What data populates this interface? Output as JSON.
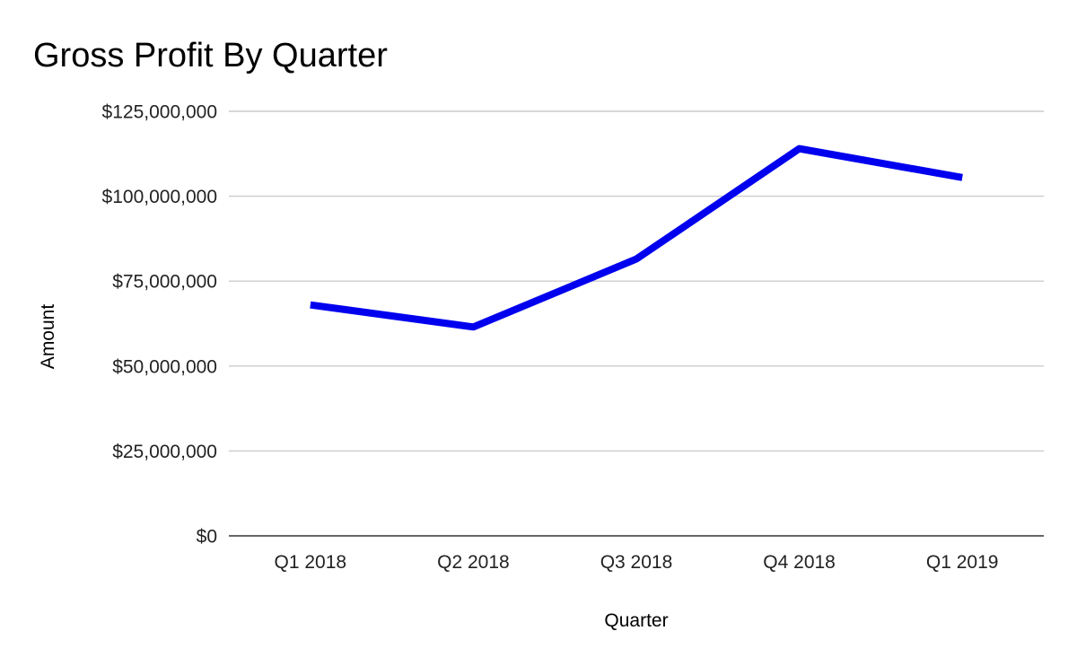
{
  "chart_data": {
    "type": "line",
    "title": "Gross Profit By Quarter",
    "xlabel": "Quarter",
    "ylabel": "Amount",
    "categories": [
      "Q1 2018",
      "Q2 2018",
      "Q3 2018",
      "Q4 2018",
      "Q1 2019"
    ],
    "series": [
      {
        "values": [
          68000000,
          61500000,
          81500000,
          114000000,
          105500000
        ],
        "color": "#0000ee"
      }
    ],
    "ylim": [
      0,
      125000000
    ],
    "yticks": [
      0,
      25000000,
      50000000,
      75000000,
      100000000,
      125000000
    ],
    "ytick_labels": [
      "$0",
      "$25,000,000",
      "$50,000,000",
      "$75,000,000",
      "$100,000,000",
      "$125,000,000"
    ],
    "grid": true,
    "legend": "none",
    "gridline_color": "#cccccc",
    "baseline_color": "#333333"
  }
}
